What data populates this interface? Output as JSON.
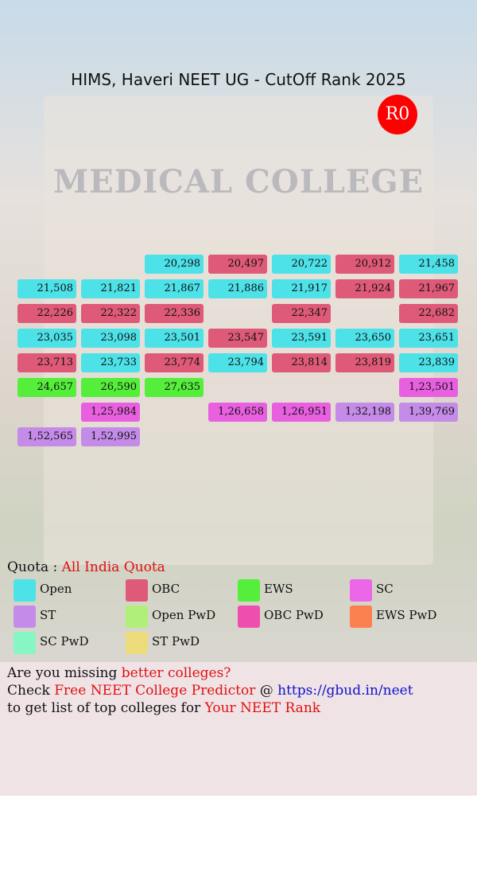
{
  "background_sign": "MEDICAL COLLEGE",
  "header": {
    "title": "HIMS, Haveri NEET UG - CutOff Rank 2025",
    "badge": "R0"
  },
  "grid": {
    "rows": [
      [
        null,
        null,
        {
          "text": "20,298",
          "color": "#4de1e8"
        },
        {
          "text": "20,497",
          "color": "#de5a78"
        },
        {
          "text": "20,722",
          "color": "#4de1e8"
        },
        {
          "text": "20,912",
          "color": "#de5a78"
        },
        {
          "text": "21,458",
          "color": "#4de1e8"
        }
      ],
      [
        {
          "text": "21,508",
          "color": "#4de1e8"
        },
        {
          "text": "21,821",
          "color": "#4de1e8"
        },
        {
          "text": "21,867",
          "color": "#4de1e8"
        },
        {
          "text": "21,886",
          "color": "#4de1e8"
        },
        {
          "text": "21,917",
          "color": "#4de1e8"
        },
        {
          "text": "21,924",
          "color": "#de5a78"
        },
        {
          "text": "21,967",
          "color": "#de5a78"
        }
      ],
      [
        {
          "text": "22,226",
          "color": "#de5a78"
        },
        {
          "text": "22,322",
          "color": "#de5a78"
        },
        {
          "text": "22,336",
          "color": "#de5a78"
        },
        null,
        {
          "text": "22,347",
          "color": "#de5a78"
        },
        null,
        {
          "text": "22,682",
          "color": "#de5a78"
        }
      ],
      [
        {
          "text": "23,035",
          "color": "#4de1e8"
        },
        {
          "text": "23,098",
          "color": "#4de1e8"
        },
        {
          "text": "23,501",
          "color": "#4de1e8"
        },
        {
          "text": "23,547",
          "color": "#de5a78"
        },
        {
          "text": "23,591",
          "color": "#4de1e8"
        },
        {
          "text": "23,650",
          "color": "#4de1e8"
        },
        {
          "text": "23,651",
          "color": "#4de1e8"
        }
      ],
      [
        {
          "text": "23,713",
          "color": "#de5a78"
        },
        {
          "text": "23,733",
          "color": "#4de1e8"
        },
        {
          "text": "23,774",
          "color": "#de5a78"
        },
        {
          "text": "23,794",
          "color": "#4de1e8"
        },
        {
          "text": "23,814",
          "color": "#de5a78"
        },
        {
          "text": "23,819",
          "color": "#de5a78"
        },
        {
          "text": "23,839",
          "color": "#4de1e8"
        }
      ],
      [
        {
          "text": "24,657",
          "color": "#55ee3a"
        },
        {
          "text": "26,590",
          "color": "#55ee3a"
        },
        {
          "text": "27,635",
          "color": "#55ee3a"
        },
        null,
        null,
        null,
        {
          "text": "1,23,501",
          "color": "#e860e0"
        }
      ],
      [
        null,
        {
          "text": "1,25,984",
          "color": "#e860e0"
        },
        null,
        {
          "text": "1,26,658",
          "color": "#e860e0"
        },
        {
          "text": "1,26,951",
          "color": "#e860e0"
        },
        {
          "text": "1,32,198",
          "color": "#c58be8"
        },
        {
          "text": "1,39,769",
          "color": "#c58be8"
        }
      ],
      [
        {
          "text": "1,52,565",
          "color": "#c58be8"
        },
        {
          "text": "1,52,995",
          "color": "#c58be8"
        },
        null,
        null,
        null,
        null,
        null
      ]
    ]
  },
  "quota": {
    "label": "Quota :",
    "value": "All India Quota"
  },
  "legend": [
    {
      "label": "Open",
      "color": "#4de1e8"
    },
    {
      "label": "OBC",
      "color": "#de5a78"
    },
    {
      "label": "EWS",
      "color": "#55ee3a"
    },
    {
      "label": "SC",
      "color": "#ee66e8"
    },
    {
      "label": "ST",
      "color": "#c58be8"
    },
    {
      "label": "Open PwD",
      "color": "#b0f07a"
    },
    {
      "label": "OBC PwD",
      "color": "#ee4fae"
    },
    {
      "label": "EWS PwD",
      "color": "#fb8050"
    },
    {
      "label": "SC PwD",
      "color": "#86f7c4"
    },
    {
      "label": "ST PwD",
      "color": "#eddb7a"
    }
  ],
  "footer": {
    "lines": [
      [
        {
          "text": "Are you missing "
        },
        {
          "text": "better colleges?",
          "color": "#e01010"
        }
      ],
      [
        {
          "text": "Check "
        },
        {
          "text": "Free NEET College Predictor",
          "color": "#e01010"
        },
        {
          "text": " @ "
        },
        {
          "text": "https://gbud.in/neet",
          "color": "#1010cc"
        }
      ],
      [
        {
          "text": "to get list of top colleges for "
        },
        {
          "text": "Your NEET Rank",
          "color": "#e01010"
        }
      ]
    ]
  }
}
